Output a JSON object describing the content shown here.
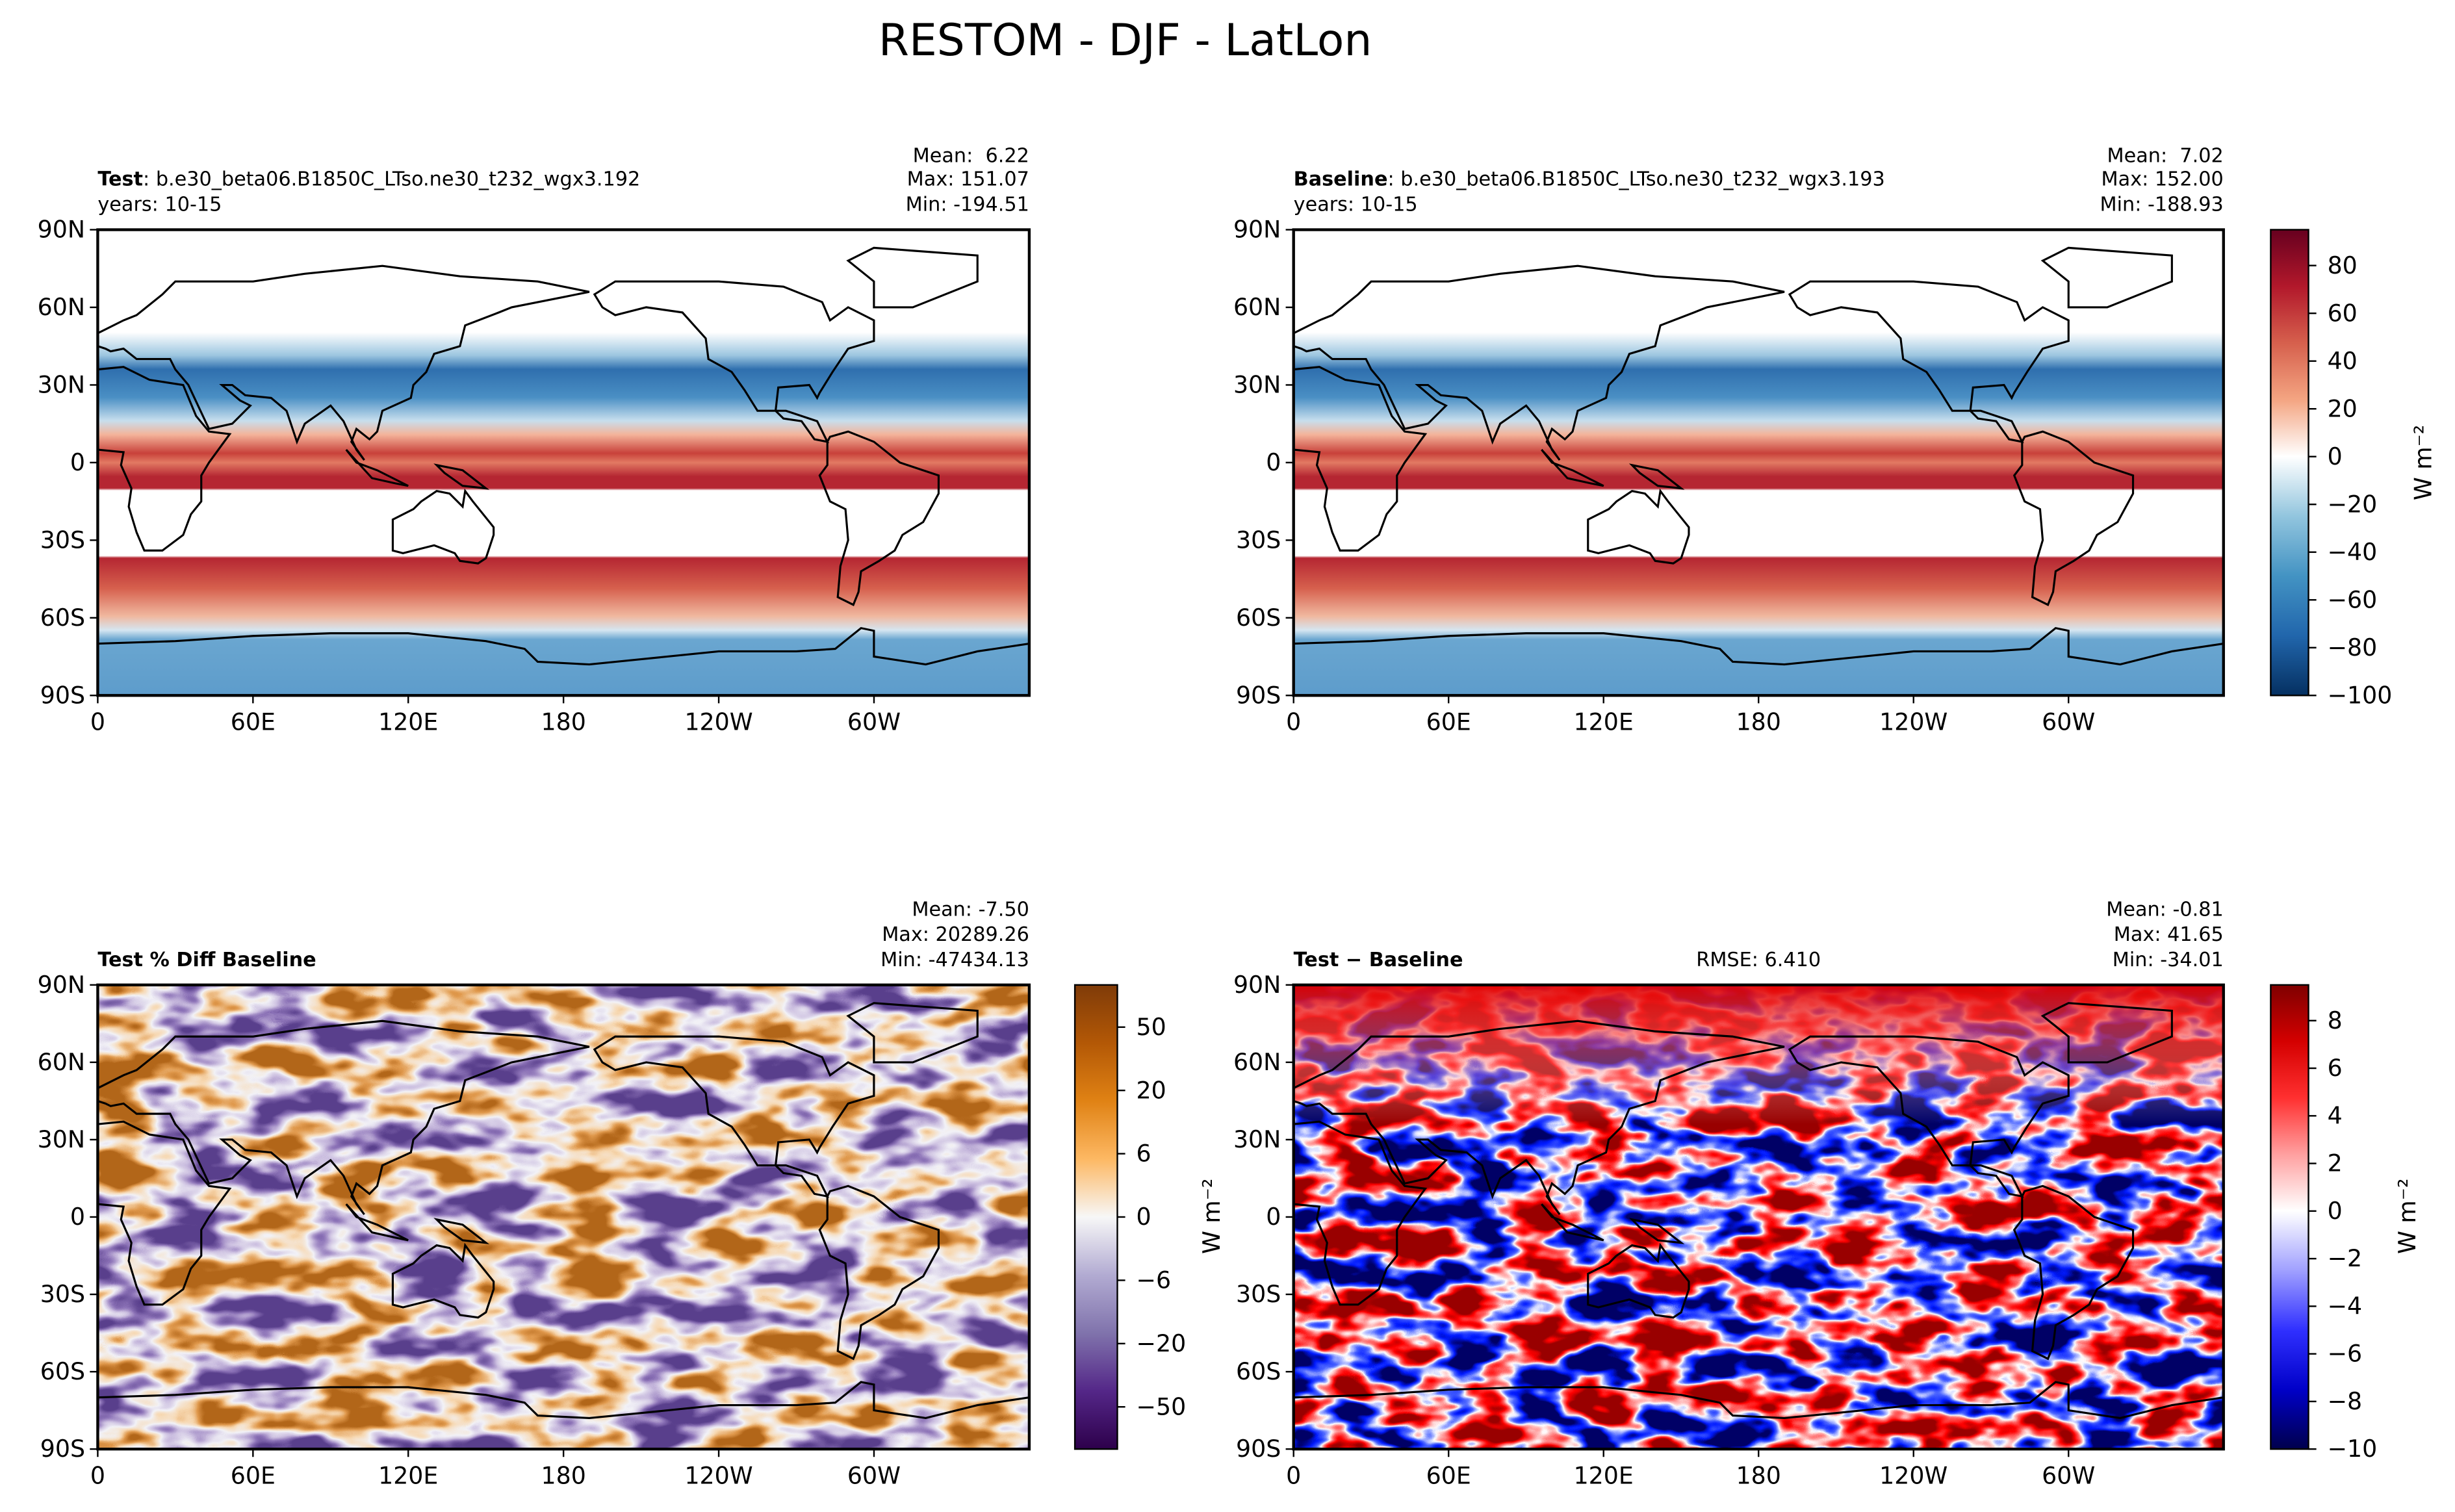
{
  "title": "RESTOM - DJF - LatLon",
  "lat_lim": [
    -90,
    90
  ],
  "lon_lim": [
    0,
    360
  ],
  "lat_ticks": [
    {
      "value": 90,
      "label": "90N"
    },
    {
      "value": 60,
      "label": "60N"
    },
    {
      "value": 30,
      "label": "30N"
    },
    0,
    {
      "value": -30,
      "label": "30S"
    },
    {
      "value": -60,
      "label": "60S"
    },
    {
      "value": -90,
      "label": "90S"
    }
  ],
  "lon_ticks": [
    0,
    {
      "value": 60,
      "label": "60E"
    },
    {
      "value": 120,
      "label": "120E"
    },
    180,
    {
      "value": 240,
      "label": "120W"
    },
    {
      "value": 300,
      "label": "60W"
    }
  ],
  "panels": [
    {
      "name": "Test",
      "case": ": b.e30_beta06.B1850C_LTso.ne30_t232_wgx3.192",
      "years": "years: 10-15",
      "stats": [
        "Mean:  6.22",
        "Max: 151.07",
        "Min: -194.51"
      ]
    },
    {
      "name": "Baseline",
      "case": ": b.e30_beta06.B1850C_LTso.ne30_t232_wgx3.193",
      "years": "years: 10-15",
      "stats": [
        "Mean:  7.02",
        "Max: 152.00",
        "Min: -188.93"
      ]
    },
    {
      "name": "Test % Diff Baseline",
      "stats": [
        "Mean: -7.50",
        "Max: 20289.26",
        "Min: -47434.13"
      ]
    },
    {
      "name": "Test − Baseline",
      "rmse": "RMSE: 6.410",
      "stats": [
        "Mean: -0.81",
        "Max: 41.65",
        "Min: -34.01"
      ]
    }
  ],
  "colorbars": [
    {
      "units": "W m⁻²",
      "lim": [
        -100,
        95
      ],
      "ticks": [
        {
          "value": -100,
          "label": "−100"
        },
        {
          "value": -80,
          "label": "−80"
        },
        {
          "value": -60,
          "label": "−60"
        },
        {
          "value": -40,
          "label": "−40"
        },
        {
          "value": -20,
          "label": "−20"
        },
        0,
        20,
        40,
        60,
        80
      ]
    },
    {
      "units": "W m⁻²",
      "ticks": [
        {
          "value": -50,
          "label": "−50"
        },
        {
          "value": -20,
          "label": "−20"
        },
        {
          "value": -6,
          "label": "−6"
        },
        0,
        6,
        20,
        50
      ]
    },
    {
      "units": "W m⁻²",
      "lim": [
        -10,
        9.5
      ],
      "ticks": [
        {
          "value": -10,
          "label": "−10"
        },
        {
          "value": -8,
          "label": "−8"
        },
        {
          "value": -6,
          "label": "−6"
        },
        {
          "value": -4,
          "label": "−4"
        },
        {
          "value": -2,
          "label": "−2"
        },
        0,
        2,
        4,
        6,
        8
      ]
    }
  ]
}
